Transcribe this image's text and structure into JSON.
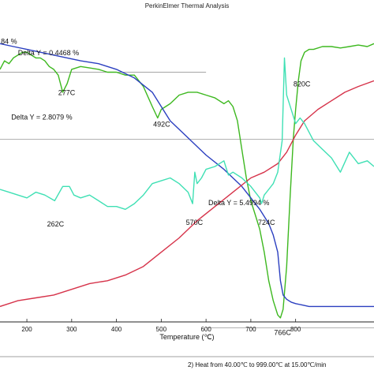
{
  "chart_data": {
    "type": "line",
    "title": "PerkinElmer Thermal Analysis",
    "xlabel": "Temperature (℃)",
    "xlim": [
      140,
      975
    ],
    "xticks": [
      200,
      300,
      400,
      500,
      600,
      700,
      800
    ],
    "footer": "2)    Heat from 40.00℃ to 999.00℃ at 15.00℃/min",
    "grid": false,
    "colors": {
      "green": "#3db81f",
      "blue": "#2b3fc0",
      "red": "#d6334a",
      "cyan": "#3fe0b4",
      "ref": "#9a9a9a"
    },
    "series": [
      {
        "key": "green",
        "x": [
          140,
          150,
          160,
          170,
          180,
          190,
          200,
          210,
          220,
          230,
          240,
          250,
          260,
          270,
          280,
          290,
          300,
          320,
          340,
          360,
          380,
          400,
          420,
          440,
          460,
          480,
          492,
          500,
          520,
          540,
          560,
          580,
          600,
          620,
          640,
          650,
          660,
          670,
          680,
          690,
          700,
          710,
          720,
          730,
          740,
          750,
          760,
          766,
          772,
          780,
          788,
          795,
          800,
          806,
          812,
          820,
          830,
          840,
          860,
          880,
          900,
          920,
          940,
          960,
          975
        ],
        "y": [
          0.16,
          0.13,
          0.14,
          0.12,
          0.11,
          0.1,
          0.1,
          0.11,
          0.12,
          0.12,
          0.13,
          0.15,
          0.16,
          0.18,
          0.24,
          0.21,
          0.16,
          0.15,
          0.155,
          0.16,
          0.17,
          0.17,
          0.18,
          0.18,
          0.22,
          0.29,
          0.33,
          0.3,
          0.28,
          0.25,
          0.24,
          0.24,
          0.25,
          0.26,
          0.28,
          0.27,
          0.29,
          0.34,
          0.44,
          0.54,
          0.62,
          0.67,
          0.72,
          0.8,
          0.9,
          0.97,
          1.02,
          1.03,
          1.0,
          0.85,
          0.6,
          0.4,
          0.3,
          0.2,
          0.13,
          0.1,
          0.09,
          0.09,
          0.08,
          0.08,
          0.085,
          0.08,
          0.075,
          0.08,
          0.07
        ]
      },
      {
        "key": "blue",
        "x": [
          140,
          170,
          200,
          230,
          260,
          290,
          320,
          360,
          400,
          440,
          480,
          492,
          520,
          560,
          600,
          640,
          680,
          700,
          720,
          740,
          750,
          760,
          766,
          772,
          780,
          790,
          800,
          815,
          830,
          860,
          900,
          940,
          975
        ],
        "y": [
          0.07,
          0.08,
          0.09,
          0.1,
          0.11,
          0.12,
          0.13,
          0.14,
          0.16,
          0.19,
          0.24,
          0.27,
          0.34,
          0.4,
          0.46,
          0.51,
          0.57,
          0.61,
          0.65,
          0.7,
          0.74,
          0.8,
          0.9,
          0.95,
          0.965,
          0.975,
          0.98,
          0.985,
          0.99,
          0.99,
          0.99,
          0.99,
          0.99
        ]
      },
      {
        "key": "red",
        "x": [
          140,
          180,
          220,
          260,
          300,
          340,
          380,
          420,
          460,
          500,
          540,
          580,
          620,
          660,
          700,
          730,
          760,
          780,
          800,
          820,
          850,
          880,
          910,
          940,
          975
        ],
        "y": [
          0.99,
          0.97,
          0.96,
          0.95,
          0.93,
          0.91,
          0.9,
          0.88,
          0.85,
          0.8,
          0.75,
          0.69,
          0.64,
          0.59,
          0.54,
          0.52,
          0.49,
          0.45,
          0.39,
          0.34,
          0.3,
          0.27,
          0.24,
          0.22,
          0.2
        ]
      },
      {
        "key": "cyan",
        "x": [
          140,
          160,
          180,
          200,
          220,
          240,
          262,
          280,
          295,
          305,
          320,
          340,
          360,
          380,
          400,
          420,
          440,
          460,
          480,
          500,
          520,
          540,
          560,
          570,
          575,
          580,
          590,
          600,
          620,
          640,
          650,
          660,
          680,
          700,
          720,
          724,
          730,
          740,
          750,
          760,
          770,
          775,
          780,
          790,
          800,
          810,
          820,
          840,
          860,
          880,
          900,
          920,
          940,
          960,
          975
        ],
        "y": [
          0.58,
          0.59,
          0.6,
          0.61,
          0.59,
          0.6,
          0.62,
          0.57,
          0.57,
          0.6,
          0.61,
          0.6,
          0.62,
          0.64,
          0.64,
          0.65,
          0.63,
          0.6,
          0.56,
          0.55,
          0.54,
          0.56,
          0.59,
          0.63,
          0.52,
          0.56,
          0.54,
          0.51,
          0.5,
          0.48,
          0.53,
          0.52,
          0.54,
          0.57,
          0.61,
          0.63,
          0.6,
          0.58,
          0.56,
          0.52,
          0.41,
          0.12,
          0.25,
          0.3,
          0.35,
          0.33,
          0.35,
          0.41,
          0.44,
          0.47,
          0.52,
          0.45,
          0.49,
          0.48,
          0.5
        ]
      }
    ],
    "annotations": [
      {
        "text": "84 %",
        "x": 142,
        "y": 0.07
      },
      {
        "text": "Delta Y = 0.4468 %",
        "x": 180,
        "y": 0.11
      },
      {
        "text": "277C",
        "x": 270,
        "y": 0.25
      },
      {
        "text": "Delta Y = 2.8079 %",
        "x": 165,
        "y": 0.335
      },
      {
        "text": "492C",
        "x": 482,
        "y": 0.36
      },
      {
        "text": "262C",
        "x": 245,
        "y": 0.71
      },
      {
        "text": "570C",
        "x": 555,
        "y": 0.705
      },
      {
        "text": "Delta Y = 5.4994 %",
        "x": 605,
        "y": 0.635
      },
      {
        "text": "724C",
        "x": 716,
        "y": 0.705
      },
      {
        "text": "766C",
        "x": 752,
        "y": 1.09
      },
      {
        "text": "820C",
        "x": 795,
        "y": 0.22
      }
    ],
    "reference_lines": [
      {
        "x1": 140,
        "x2": 600,
        "y": 0.17
      },
      {
        "x1": 140,
        "x2": 975,
        "y": 0.405
      },
      {
        "x1": 600,
        "x2": 975,
        "y": 1.065
      }
    ]
  }
}
